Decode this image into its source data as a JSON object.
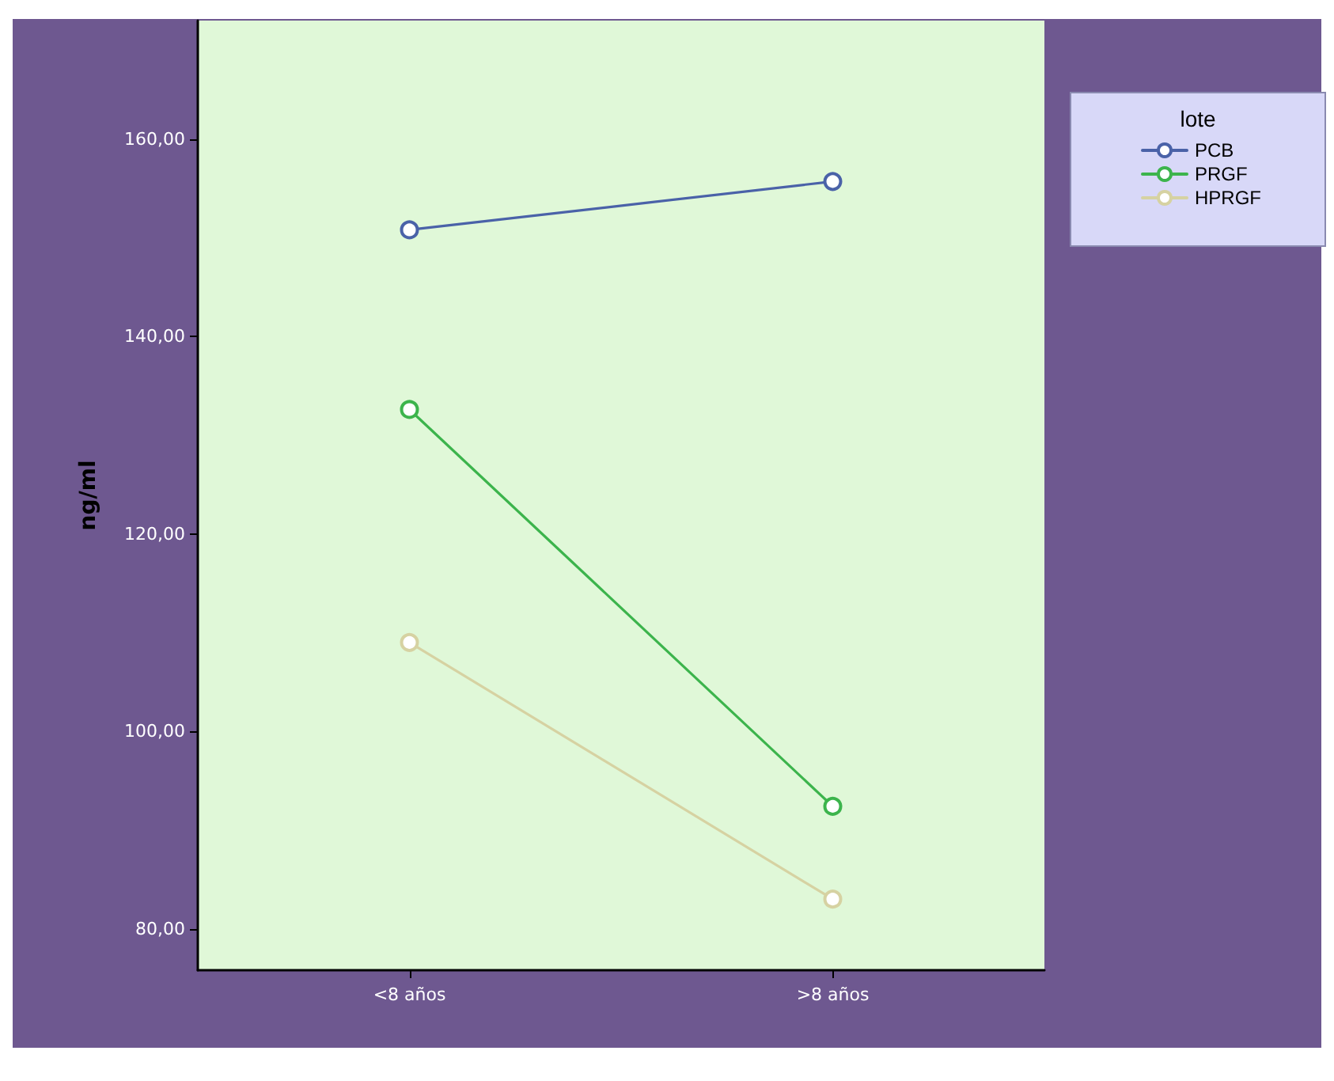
{
  "chart_data": {
    "type": "line",
    "ylabel": "ng/ml",
    "legend_title": "lote",
    "categories": [
      "<8 años",
      ">8 años"
    ],
    "series": [
      {
        "name": "PCB",
        "color": "#4a62a8",
        "values": [
          150.8,
          155.7
        ]
      },
      {
        "name": "PRGF",
        "color": "#3cb44c",
        "values": [
          132.6,
          92.4
        ]
      },
      {
        "name": "HPRGF",
        "color": "#d6d2a2",
        "values": [
          109.0,
          83.0
        ]
      }
    ],
    "ylim": [
      75.8,
      172
    ],
    "yticks": [
      {
        "value": 80,
        "label": "80,00"
      },
      {
        "value": 100,
        "label": "100,00"
      },
      {
        "value": 120,
        "label": "120,00"
      },
      {
        "value": 140,
        "label": "140,00"
      },
      {
        "value": 160,
        "label": "160,00"
      }
    ],
    "grid": false,
    "legend": "top right",
    "marker": "circle",
    "line_style": "solid"
  }
}
